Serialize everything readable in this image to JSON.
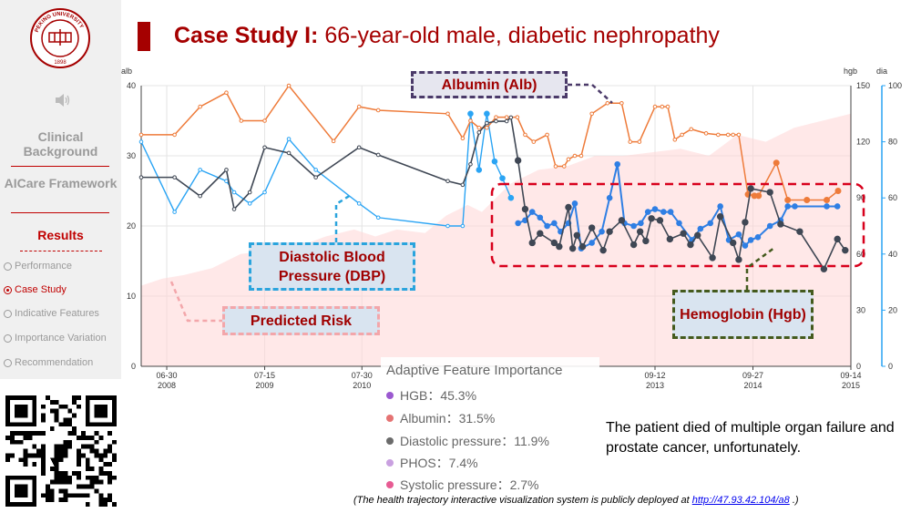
{
  "title": {
    "bold": "Case Study I:",
    "rest": " 66-year-old male, diabetic nephropathy"
  },
  "sidebar": {
    "logo_text": "PEKING UNIVERSITY",
    "logo_year": "1898",
    "sections": [
      "Clinical Background",
      "AICare Framework",
      "Results"
    ],
    "items": [
      {
        "label": "Performance",
        "active": false
      },
      {
        "label": "Case Study",
        "active": true
      },
      {
        "label": "Indicative Features",
        "active": false
      },
      {
        "label": "Importance Variation",
        "active": false
      },
      {
        "label": "Recommendation",
        "active": false
      }
    ]
  },
  "callouts": {
    "albumin": "Albumin (Alb)",
    "dbp": "Diastolic Blood Pressure (DBP)",
    "risk": "Predicted Risk",
    "hgb": "Hemoglobin (Hgb)"
  },
  "legend": {
    "title": "Adaptive Feature Importance",
    "items": [
      {
        "label": "HGB：45.3%",
        "color": "#9b59d0"
      },
      {
        "label": "Albumin：31.5%",
        "color": "#e57373"
      },
      {
        "label": "Diastolic pressure：11.9%",
        "color": "#6b6b6b"
      },
      {
        "label": "PHOS：7.4%",
        "color": "#c9a0e0"
      },
      {
        "label": "Systolic pressure：2.7%",
        "color": "#e75b93"
      }
    ]
  },
  "note": "The patient died of multiple organ failure and prostate cancer, unfortunately.",
  "footer": {
    "text": "(The health trajectory interactive visualization system is publicly deployed at ",
    "link": "http://47.93.42.104/a8",
    "end": " .)"
  },
  "colors": {
    "accent": "#a50000",
    "albumin": "#ee7b3a",
    "hgb_dark": "#3f4754",
    "dbp": "#2aa4f4",
    "dbp_late": "#2f7fe4",
    "risk": "#ffd5d5"
  },
  "chart_data": {
    "type": "line",
    "axes": {
      "left": {
        "label": "alb",
        "ticks": [
          "0",
          "10",
          "20",
          "30",
          "40"
        ],
        "range": [
          0,
          40
        ]
      },
      "right1": {
        "label": "hgb",
        "ticks": [
          "0",
          "30",
          "60",
          "90",
          "120",
          "150"
        ],
        "range": [
          0,
          150
        ]
      },
      "right2": {
        "label": "dia",
        "ticks": [
          "0",
          "20",
          "40",
          "60",
          "80",
          "100"
        ],
        "range": [
          0,
          100
        ]
      },
      "x_range": [
        0,
        100
      ],
      "x_ticks": [
        {
          "x": 3.6,
          "label": "06-30",
          "year": "2008"
        },
        {
          "x": 17.4,
          "label": "07-15",
          "year": "2009"
        },
        {
          "x": 31.1,
          "label": "07-30",
          "year": "2010"
        },
        {
          "x": 72.4,
          "label": "09-12",
          "year": "2013"
        },
        {
          "x": 86.2,
          "label": "09-27",
          "year": "2014"
        },
        {
          "x": 100,
          "label": "09-14",
          "year": "2015"
        }
      ]
    },
    "series": [
      {
        "key": "albumin",
        "axis": "left",
        "x": [
          0,
          4.7,
          8.3,
          12,
          14.1,
          17.4,
          20.8,
          27.1,
          30.7,
          33.4,
          43.2,
          45.3,
          46.4,
          47.6,
          48.7,
          50,
          51.5,
          53,
          54.1,
          55.3,
          57.2,
          58.4,
          59.6,
          60.2,
          61.1,
          62,
          63.5,
          65.7,
          67.7,
          68.9,
          70.2,
          72.4,
          73.4,
          74.2,
          75.2,
          76.2,
          77.5,
          79.6,
          81.3,
          82.7,
          83.4,
          84.2,
          85.5,
          86.4,
          87,
          89.5,
          91.1,
          93.8,
          96.6,
          98.2
        ],
        "y": [
          33,
          33,
          37,
          39,
          35,
          35,
          40,
          32.1,
          37,
          36.5,
          36,
          32.5,
          35,
          34,
          34,
          35.5,
          35.5,
          35.5,
          33,
          32,
          33,
          28.5,
          28.5,
          29.5,
          30,
          30,
          36,
          37.5,
          37.5,
          32,
          32,
          37,
          37,
          37,
          32.3,
          33,
          33.8,
          33.2,
          33,
          33,
          33,
          33,
          24.5,
          24.3,
          24.3,
          29,
          23.7,
          23.7,
          23.7,
          25
        ]
      },
      {
        "key": "hgb",
        "axis": "right1",
        "x": [
          0,
          4.7,
          8.3,
          12,
          13.1,
          15.3,
          17.4,
          20.8,
          24.6,
          30.7,
          33.4,
          43.2,
          45.3,
          46.4,
          47.6,
          48.7,
          50,
          51.5,
          52.1,
          53.1,
          54.1,
          55.1,
          56.2,
          58.2,
          58.9,
          60.2,
          60.8,
          61.4,
          62.2,
          63.5,
          65.1,
          66,
          67.7,
          69.4,
          70.3,
          71.1,
          71.9,
          73.1,
          74.5,
          76.4,
          77.4,
          78.4,
          80.5,
          81.6,
          83.4,
          84.2,
          85.1,
          85.9,
          88.6,
          90.1,
          92.8,
          96.2,
          98.1,
          99.2
        ],
        "y": [
          101,
          101,
          91,
          105,
          84,
          93,
          117,
          114,
          101,
          117,
          113,
          99,
          97,
          108,
          125,
          130,
          131,
          131,
          133,
          110,
          84,
          66,
          71,
          66,
          64,
          85,
          63,
          70,
          64,
          74,
          62,
          72,
          78,
          65,
          72,
          67,
          79,
          78,
          68,
          71,
          65,
          70,
          58,
          80,
          66,
          57,
          77,
          95,
          93,
          76,
          72,
          52,
          68,
          62
        ]
      },
      {
        "key": "dbp",
        "axis": "right2",
        "x": [
          0,
          4.7,
          8.3,
          12,
          13.1,
          15.3,
          17.4,
          20.8,
          24.6,
          30.7,
          33.4,
          43.2,
          45.3,
          46.4,
          47.6,
          48.7,
          49.8,
          50.9,
          52.1,
          53.1,
          54.1,
          55.1,
          56.2,
          57.2,
          58.2,
          59.1,
          60.2,
          61.1,
          62,
          63.5,
          64.9,
          66,
          67.1,
          68.1,
          69.4,
          70.4,
          71.4,
          72.4,
          73.6,
          74.6,
          75.8,
          77.6,
          78.8,
          80.2,
          81.6,
          82.8,
          84.2,
          85.1,
          85.9,
          86.9,
          88.6,
          90.1,
          91.1,
          92.1,
          96.6,
          98.1
        ],
        "y": [
          80,
          55,
          70,
          66,
          62,
          58,
          62,
          81,
          70,
          58,
          53,
          50,
          50,
          90,
          70,
          90,
          73,
          67,
          60,
          51,
          52,
          55,
          53,
          50,
          51,
          48,
          51,
          58,
          42,
          44,
          48,
          60,
          72,
          51,
          50,
          51,
          55,
          56,
          55,
          55,
          51,
          45,
          49,
          51,
          57,
          45,
          47,
          43,
          45,
          46,
          50,
          52,
          57,
          57,
          57,
          57
        ]
      },
      {
        "key": "risk",
        "axis": "left",
        "x": [
          0,
          3,
          6,
          10,
          14,
          18,
          22,
          26,
          30,
          33,
          36,
          40,
          43,
          46,
          48,
          50,
          52,
          56,
          60,
          64,
          68,
          72,
          76,
          80,
          84,
          88,
          92,
          96,
          100
        ],
        "y": [
          11.5,
          12.5,
          13,
          14,
          16,
          16.5,
          17,
          18.5,
          19.5,
          18.5,
          19.5,
          19,
          21.5,
          23,
          22,
          24,
          26,
          28,
          28.5,
          30,
          30,
          30.5,
          31,
          30,
          33,
          32,
          34,
          35,
          36
        ]
      }
    ]
  }
}
